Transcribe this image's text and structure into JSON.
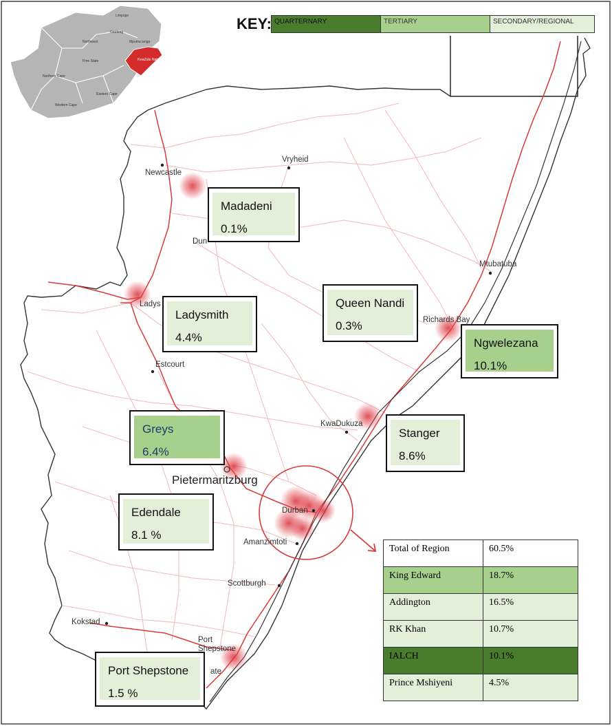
{
  "key": {
    "title": "KEY:",
    "levels": [
      {
        "label": "QUARTERNARY",
        "color": "#4a7c2e"
      },
      {
        "label": "TERTIARY",
        "color": "#a8d08d"
      },
      {
        "label": "SECONDARY/REGIONAL",
        "color": "#e2efd9"
      }
    ]
  },
  "inset": {
    "highlight_label": "KwaZulu Natal",
    "province_labels": [
      "Limpopo",
      "Northwest",
      "Mpuma langa",
      "Free State",
      "Gauteng",
      "Northern Cape",
      "Eastern Cape",
      "Western Cape"
    ]
  },
  "towns": [
    "Newcastle",
    "Vryheid",
    "Dun",
    "Mtubatuba",
    "Ladys",
    "Richards Bay",
    "Estcourt",
    "KwaDukuza",
    "Pietermaritzburg",
    "Durban",
    "Amanzimtoti",
    "Scottburgh",
    "Kokstad",
    "Port Shepstone",
    "ate"
  ],
  "hospitals": [
    {
      "name": "Madadeni",
      "value": "0.1%",
      "level": "secondary"
    },
    {
      "name": "Queen Nandi",
      "value": "0.3%",
      "level": "secondary"
    },
    {
      "name": "Ladysmith",
      "value": "4.4%",
      "level": "secondary"
    },
    {
      "name": "Ngwelezana",
      "value": "10.1%",
      "level": "tertiary"
    },
    {
      "name": "Greys",
      "value": "6.4%",
      "level": "tertiary"
    },
    {
      "name": "Stanger",
      "value": "8.6%",
      "level": "secondary"
    },
    {
      "name": "Edendale",
      "value": "8.1 %",
      "level": "secondary"
    },
    {
      "name": "Port Shepstone",
      "value": "1.5 %",
      "level": "secondary"
    }
  ],
  "region_table": {
    "rows": [
      {
        "name": "Total of Region",
        "value": "60.5%",
        "level": "none"
      },
      {
        "name": "King Edward",
        "value": "18.7%",
        "level": "tertiary"
      },
      {
        "name": "Addington",
        "value": "16.5%",
        "level": "secondary"
      },
      {
        "name": "RK Khan",
        "value": "10.7%",
        "level": "secondary"
      },
      {
        "name": "IALCH",
        "value": "10.1%",
        "level": "quarternary"
      },
      {
        "name": "Prince Mshiyeni",
        "value": "4.5%",
        "level": "secondary"
      }
    ]
  }
}
